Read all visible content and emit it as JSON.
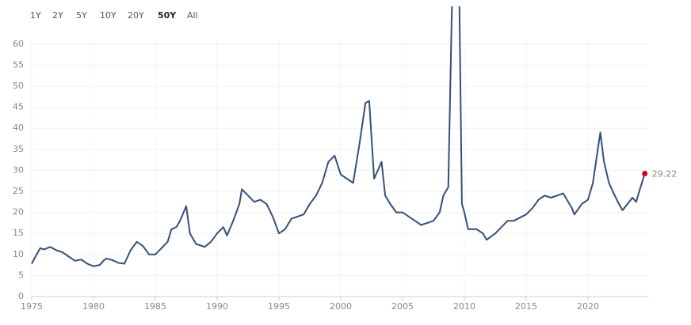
{
  "controls": {
    "range_buttons": [
      "1Y",
      "2Y",
      "5Y",
      "10Y",
      "20Y",
      "50Y",
      "All"
    ],
    "selected_range": 5
  },
  "chart_data": {
    "type": "line",
    "color": "#34507a",
    "last_point_color": "#d0021b",
    "x": [
      1975.0,
      1975.3,
      1975.7,
      1976.0,
      1976.5,
      1977.0,
      1977.5,
      1978.0,
      1978.5,
      1979.0,
      1979.5,
      1980.0,
      1980.5,
      1980.8,
      1981.0,
      1981.5,
      1982.0,
      1982.5,
      1983.0,
      1983.5,
      1984.0,
      1984.5,
      1985.0,
      1985.5,
      1986.0,
      1986.3,
      1986.7,
      1987.0,
      1987.5,
      1987.8,
      1988.3,
      1989.0,
      1989.5,
      1990.0,
      1990.5,
      1990.8,
      1991.3,
      1991.8,
      1992.0,
      1992.5,
      1993.0,
      1993.5,
      1994.0,
      1994.5,
      1995.0,
      1995.5,
      1996.0,
      1996.5,
      1997.0,
      1997.5,
      1998.0,
      1998.5,
      1999.0,
      1999.5,
      2000.0,
      2000.5,
      2001.0,
      2001.5,
      2002.0,
      2002.3,
      2002.7,
      2003.0,
      2003.3,
      2003.6,
      2004.0,
      2004.5,
      2005.0,
      2005.5,
      2006.0,
      2006.5,
      2007.0,
      2007.5,
      2008.0,
      2008.3,
      2008.7,
      2009.0,
      2009.2,
      2009.4,
      2009.6,
      2009.8,
      2010.0,
      2010.3,
      2011.0,
      2011.5,
      2011.8,
      2012.5,
      2013.0,
      2013.5,
      2014.0,
      2015.0,
      2015.5,
      2016.0,
      2016.5,
      2017.0,
      2017.5,
      2018.0,
      2018.7,
      2018.9,
      2019.5,
      2020.0,
      2020.4,
      2020.8,
      2021.0,
      2021.3,
      2021.7,
      2022.0,
      2022.5,
      2022.8,
      2023.2,
      2023.6,
      2023.9,
      2024.2,
      2024.6
    ],
    "values": [
      7.8,
      9.5,
      11.5,
      11.2,
      11.8,
      11,
      10.5,
      9.5,
      8.5,
      8.8,
      7.8,
      7.2,
      7.5,
      8.5,
      9,
      8.7,
      8,
      7.8,
      11,
      13,
      12,
      10,
      10,
      11.5,
      13,
      16,
      16.5,
      18,
      21.5,
      15,
      12.5,
      11.8,
      13,
      15,
      16.5,
      14.5,
      18,
      22,
      25.5,
      24,
      22.5,
      23,
      22,
      19,
      15,
      16,
      18.5,
      19,
      19.5,
      22,
      24,
      27,
      32,
      33.5,
      29,
      28,
      27,
      36,
      46,
      46.5,
      28,
      30,
      32,
      24,
      22,
      20,
      20,
      19,
      18,
      17,
      17.5,
      18,
      20,
      24,
      26,
      70,
      110,
      123,
      70,
      22,
      20,
      16,
      16,
      15,
      13.5,
      15,
      16.5,
      18,
      18,
      19.5,
      21,
      23,
      24,
      23.5,
      24,
      24.5,
      21,
      19.5,
      22,
      23,
      27,
      35,
      39,
      32,
      27,
      25,
      22,
      20.5,
      22,
      23.5,
      22.5,
      25.5,
      29.22
    ],
    "xlim": [
      1975,
      2024.9
    ],
    "xticks": [
      1975,
      1980,
      1985,
      1990,
      1995,
      2000,
      2005,
      2010,
      2015,
      2020
    ],
    "ylim": [
      0,
      68.6
    ],
    "yticks": [
      0,
      5,
      10,
      15,
      20,
      25,
      30,
      35,
      40,
      45,
      50,
      55,
      60
    ],
    "grid": true
  }
}
